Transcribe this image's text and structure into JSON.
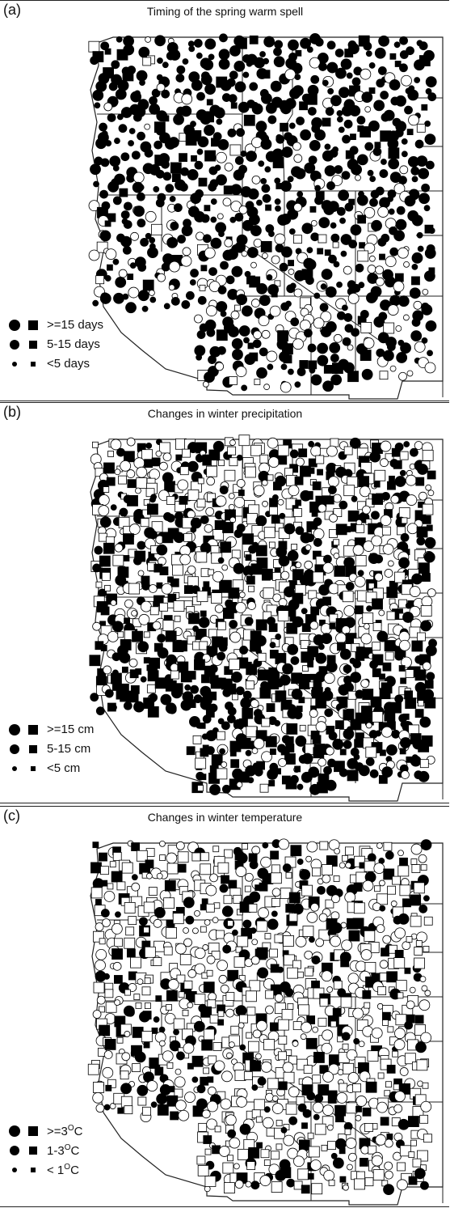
{
  "panels": [
    {
      "id": "a",
      "label": "(a)",
      "title": "Timing of the spring warm spell",
      "legend": [
        {
          "size": "large",
          "text": ">=15 days"
        },
        {
          "size": "medium",
          "text": "5-15 days"
        },
        {
          "size": "small",
          "text": "<5 days"
        }
      ]
    },
    {
      "id": "b",
      "label": "(b)",
      "title": "Changes in winter precipitation",
      "legend": [
        {
          "size": "large",
          "text": ">=15 cm"
        },
        {
          "size": "medium",
          "text": "5-15 cm"
        },
        {
          "size": "small",
          "text": "<5 cm"
        }
      ]
    },
    {
      "id": "c",
      "label": "(c)",
      "title": "Changes in winter temperature",
      "legend": [
        {
          "size": "large",
          "text": ">=3",
          "unit": "C"
        },
        {
          "size": "medium",
          "text": "1-3",
          "unit": "C"
        },
        {
          "size": "small",
          "text": "< 1",
          "unit": "C"
        }
      ]
    }
  ],
  "legend_symbols": [
    "filled-circle-icon",
    "filled-square-icon"
  ],
  "colors": {
    "symbol": "#000000",
    "border": "#222222"
  }
}
